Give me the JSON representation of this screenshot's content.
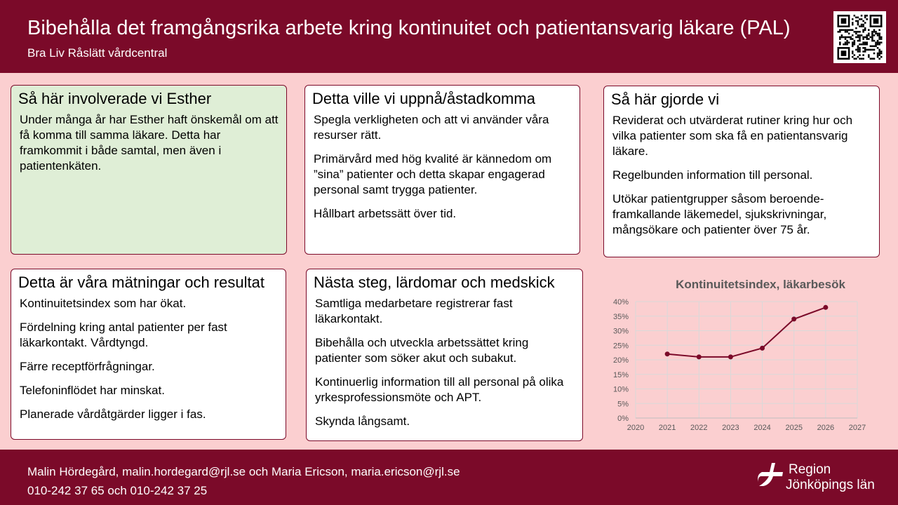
{
  "header": {
    "title": "Bibehålla det framgångsrika arbete kring kontinuitet och patientansvarig läkare (PAL)",
    "subtitle": "Bra Liv Råslätt vårdcentral"
  },
  "cards": [
    {
      "title": "Så här involverade vi Esther",
      "paragraphs": [
        "Under många år har Esther haft önskemål om att få komma till samma läkare. Detta har framkommit i både samtal, men även i patientenkäten."
      ]
    },
    {
      "title": "Detta ville vi uppnå/åstadkomma",
      "paragraphs": [
        "Spegla verkligheten och att vi använder våra resurser rätt.",
        "Primärvård med hög kvalité är kännedom om ”sina” patienter och detta skapar engagerad personal samt trygga patienter.",
        "Hållbart arbetssätt över tid."
      ]
    },
    {
      "title": "Så här gjorde vi",
      "paragraphs": [
        "Reviderat och utvärderat rutiner kring hur och vilka patienter som ska få en patientansvarig läkare.",
        "Regelbunden information till personal.",
        "Utökar patientgrupper såsom beroende-framkallande läkemedel, sjukskrivningar, mångsökare och patienter över 75 år."
      ]
    },
    {
      "title": "Detta är våra mätningar och resultat",
      "paragraphs": [
        "Kontinuitetsindex som har ökat.",
        "Fördelning kring antal patienter per fast läkarkontakt. Vårdtyngd.",
        "Färre receptförfrågningar.",
        "Telefoninflödet har minskat.",
        "Planerade vårdåtgärder ligger i fas."
      ]
    },
    {
      "title": "Nästa steg, lärdomar och medskick",
      "paragraphs": [
        "Samtliga medarbetare registrerar fast läkarkontakt.",
        "Bibehålla och utveckla arbetssättet kring patienter som söker akut och subakut.",
        "Kontinuerlig information till all personal på olika yrkesprofessionsmöte och APT.",
        "Skynda långsamt."
      ]
    }
  ],
  "chart_data": {
    "type": "line",
    "title": "Kontinuitetsindex, läkarbesök",
    "x": [
      2021,
      2022,
      2023,
      2024,
      2025,
      2026
    ],
    "values": [
      22,
      21,
      21,
      24,
      34,
      38
    ],
    "xlim": [
      2020,
      2027
    ],
    "ylim": [
      0,
      40
    ],
    "xticks": [
      "2020",
      "2021",
      "2022",
      "2023",
      "2024",
      "2025",
      "2026",
      "2027"
    ],
    "yticks": [
      "0%",
      "5%",
      "10%",
      "15%",
      "20%",
      "25%",
      "30%",
      "35%",
      "40%"
    ],
    "grid": true,
    "color": "#7b0a29"
  },
  "footer": {
    "contacts": "Malin Hördegård, malin.hordegard@rjl.se och Maria Ericson, maria.ericson@rjl.se",
    "phones": "010-242 37 65 och 010-242 37 25",
    "logo_line1": "Region",
    "logo_line2": "Jönköpings län"
  }
}
